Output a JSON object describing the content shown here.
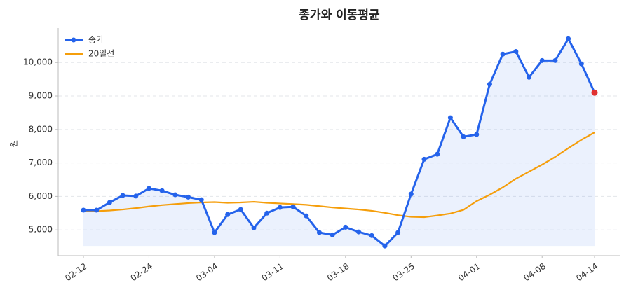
{
  "chart_data": {
    "type": "line",
    "title": "종가와 이동평균",
    "ylabel": "원",
    "categories": [
      "02-12",
      null,
      null,
      null,
      null,
      "02-24",
      null,
      null,
      null,
      null,
      "03-04",
      null,
      null,
      null,
      null,
      "03-11",
      null,
      null,
      null,
      null,
      "03-18",
      null,
      null,
      null,
      null,
      "03-25",
      null,
      null,
      null,
      null,
      "04-01",
      null,
      null,
      null,
      null,
      "04-08",
      null,
      null,
      null,
      "04-14"
    ],
    "series": [
      {
        "name": "종가",
        "color": "#2563eb",
        "markers": true,
        "fill": true,
        "last_point_color": "#e03131",
        "values": [
          5590,
          5590,
          5820,
          6030,
          6010,
          6240,
          6170,
          6050,
          5980,
          5900,
          4920,
          5460,
          5610,
          5060,
          5500,
          5670,
          5690,
          5420,
          4920,
          4850,
          5080,
          4940,
          4830,
          4520,
          4920,
          6070,
          7110,
          7260,
          8350,
          7780,
          7850,
          9350,
          10250,
          10330,
          9560,
          10060,
          10060,
          10710,
          9960,
          9100
        ]
      },
      {
        "name": "20일선",
        "color": "#f59e0b",
        "markers": false,
        "fill": false,
        "values": [
          5570,
          5560,
          5580,
          5610,
          5650,
          5700,
          5740,
          5770,
          5800,
          5820,
          5830,
          5810,
          5820,
          5840,
          5810,
          5790,
          5770,
          5750,
          5710,
          5670,
          5640,
          5610,
          5570,
          5510,
          5440,
          5390,
          5380,
          5430,
          5490,
          5600,
          5860,
          6050,
          6270,
          6530,
          6740,
          6950,
          7180,
          7440,
          7690,
          7910
        ]
      }
    ],
    "ylim": [
      4230,
      11030
    ],
    "yticks": [
      {
        "value": 5000,
        "label": "5,000"
      },
      {
        "value": 6000,
        "label": "6,000"
      },
      {
        "value": 7000,
        "label": "7,000"
      },
      {
        "value": 8000,
        "label": "8,000"
      },
      {
        "value": 9000,
        "label": "9,000"
      },
      {
        "value": 10000,
        "label": "10,000"
      }
    ],
    "grid": true,
    "legend": "upper left"
  }
}
